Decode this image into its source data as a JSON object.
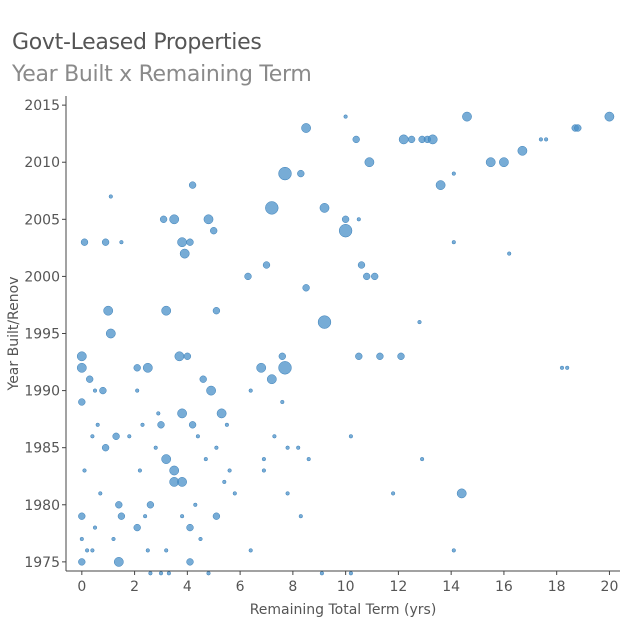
{
  "chart_data": {
    "type": "scatter",
    "title": "Govt-Leased Properties",
    "subtitle": "Year Built x Remaining Term",
    "xlabel": "Remaining Total Term (yrs)",
    "ylabel": "Year Built/Renov",
    "xlim": [
      -0.6,
      20.4
    ],
    "ylim": [
      1974.2,
      2015.8
    ],
    "xticks": [
      0,
      2,
      4,
      6,
      8,
      10,
      12,
      14,
      16,
      18,
      20
    ],
    "yticks": [
      1975,
      1980,
      1985,
      1990,
      1995,
      2000,
      2005,
      2010,
      2015
    ],
    "grid": false,
    "point_color": "#4a90c8",
    "points": [
      [
        20,
        2014,
        3
      ],
      [
        14.6,
        2014,
        3
      ],
      [
        10,
        2014,
        1
      ],
      [
        18.7,
        2013,
        2
      ],
      [
        18.8,
        2013,
        2
      ],
      [
        8.5,
        2013,
        3
      ],
      [
        12.2,
        2012,
        3
      ],
      [
        12.5,
        2012,
        2
      ],
      [
        12.9,
        2012,
        2
      ],
      [
        13.1,
        2012,
        2
      ],
      [
        13.3,
        2012,
        3
      ],
      [
        17.4,
        2012,
        1
      ],
      [
        17.6,
        2012,
        1
      ],
      [
        10.4,
        2012,
        2
      ],
      [
        16.7,
        2011,
        3
      ],
      [
        15.5,
        2010,
        3
      ],
      [
        16.0,
        2010,
        3
      ],
      [
        10.9,
        2010,
        3
      ],
      [
        7.7,
        2009,
        4
      ],
      [
        8.3,
        2009,
        2
      ],
      [
        14.1,
        2009,
        1
      ],
      [
        13.6,
        2008,
        3
      ],
      [
        4.2,
        2008,
        2
      ],
      [
        7.2,
        2006,
        4
      ],
      [
        9.2,
        2006,
        3
      ],
      [
        10.5,
        2005,
        1
      ],
      [
        1.1,
        2007,
        1
      ],
      [
        3.1,
        2005,
        2
      ],
      [
        3.5,
        2005,
        3
      ],
      [
        4.8,
        2005,
        3
      ],
      [
        10.0,
        2005,
        2
      ],
      [
        10.0,
        2004,
        4
      ],
      [
        5.0,
        2004,
        2
      ],
      [
        4.1,
        2003,
        2
      ],
      [
        3.8,
        2003,
        3
      ],
      [
        0.9,
        2003,
        2
      ],
      [
        0.1,
        2003,
        2
      ],
      [
        1.5,
        2003,
        1
      ],
      [
        3.9,
        2002,
        3
      ],
      [
        10.6,
        2001,
        2
      ],
      [
        16.2,
        2002,
        1
      ],
      [
        14.1,
        2003,
        1
      ],
      [
        7.0,
        2001,
        2
      ],
      [
        8.5,
        1999,
        2
      ],
      [
        6.3,
        2000,
        2
      ],
      [
        10.8,
        2000,
        2
      ],
      [
        11.1,
        2000,
        2
      ],
      [
        1.0,
        1997,
        3
      ],
      [
        3.2,
        1997,
        3
      ],
      [
        5.1,
        1997,
        2
      ],
      [
        9.2,
        1996,
        4
      ],
      [
        12.8,
        1996,
        1
      ],
      [
        1.1,
        1995,
        3
      ],
      [
        0.0,
        1993,
        3
      ],
      [
        3.7,
        1993,
        3
      ],
      [
        4.0,
        1993,
        2
      ],
      [
        7.6,
        1993,
        2
      ],
      [
        10.5,
        1993,
        2
      ],
      [
        11.3,
        1993,
        2
      ],
      [
        12.1,
        1993,
        2
      ],
      [
        0.0,
        1992,
        3
      ],
      [
        2.1,
        1992,
        2
      ],
      [
        2.5,
        1992,
        3
      ],
      [
        6.8,
        1992,
        3
      ],
      [
        7.7,
        1992,
        4
      ],
      [
        18.2,
        1992,
        1
      ],
      [
        18.4,
        1992,
        1
      ],
      [
        7.2,
        1991,
        3
      ],
      [
        4.6,
        1991,
        2
      ],
      [
        0.3,
        1991,
        2
      ],
      [
        0.8,
        1990,
        2
      ],
      [
        4.9,
        1990,
        3
      ],
      [
        0.0,
        1989,
        2
      ],
      [
        3.8,
        1988,
        3
      ],
      [
        5.3,
        1988,
        3
      ],
      [
        4.2,
        1987,
        2
      ],
      [
        3.0,
        1987,
        2
      ],
      [
        1.3,
        1986,
        2
      ],
      [
        0.9,
        1985,
        2
      ],
      [
        3.2,
        1984,
        3
      ],
      [
        0.1,
        1983,
        1
      ],
      [
        3.5,
        1983,
        3
      ],
      [
        5.6,
        1983,
        1
      ],
      [
        3.5,
        1982,
        3
      ],
      [
        3.8,
        1982,
        3
      ],
      [
        14.4,
        1981,
        3
      ],
      [
        1.4,
        1980,
        2
      ],
      [
        2.6,
        1980,
        2
      ],
      [
        0.0,
        1979,
        2
      ],
      [
        1.5,
        1979,
        2
      ],
      [
        5.1,
        1979,
        2
      ],
      [
        2.1,
        1978,
        2
      ],
      [
        4.1,
        1978,
        2
      ],
      [
        0.0,
        1977,
        1
      ],
      [
        0.2,
        1976,
        1
      ],
      [
        6.4,
        1976,
        1
      ],
      [
        14.1,
        1976,
        1
      ],
      [
        0.0,
        1975,
        2
      ],
      [
        1.4,
        1975,
        3
      ],
      [
        4.1,
        1975,
        2
      ],
      [
        2.1,
        1990,
        1
      ],
      [
        6.4,
        1990,
        1
      ],
      [
        7.6,
        1989,
        1
      ],
      [
        0.5,
        1990,
        1
      ],
      [
        2.8,
        1985,
        1
      ],
      [
        6.9,
        1984,
        1
      ],
      [
        7.3,
        1986,
        1
      ],
      [
        7.8,
        1985,
        1
      ],
      [
        8.2,
        1985,
        1
      ],
      [
        8.6,
        1984,
        1
      ],
      [
        10.2,
        1986,
        1
      ],
      [
        12.9,
        1984,
        1
      ],
      [
        7.8,
        1981,
        1
      ],
      [
        8.3,
        1979,
        1
      ],
      [
        11.8,
        1981,
        1
      ],
      [
        6.9,
        1983,
        1
      ],
      [
        9.1,
        1974,
        1
      ],
      [
        10.2,
        1974,
        1
      ],
      [
        4.8,
        1974,
        1
      ],
      [
        2.6,
        1974,
        1
      ],
      [
        3.0,
        1974,
        1
      ],
      [
        3.3,
        1974,
        1
      ],
      [
        0.4,
        1986,
        1
      ],
      [
        0.6,
        1987,
        1
      ],
      [
        1.8,
        1986,
        1
      ],
      [
        2.3,
        1987,
        1
      ],
      [
        2.9,
        1988,
        1
      ],
      [
        4.4,
        1986,
        1
      ],
      [
        5.1,
        1985,
        1
      ],
      [
        5.5,
        1987,
        1
      ],
      [
        4.7,
        1984,
        1
      ],
      [
        5.4,
        1982,
        1
      ],
      [
        2.2,
        1983,
        1
      ],
      [
        0.7,
        1981,
        1
      ],
      [
        2.4,
        1979,
        1
      ],
      [
        4.5,
        1977,
        1
      ],
      [
        1.2,
        1977,
        1
      ],
      [
        3.2,
        1976,
        1
      ],
      [
        2.5,
        1976,
        1
      ],
      [
        3.8,
        1979,
        1
      ],
      [
        4.3,
        1980,
        1
      ],
      [
        5.8,
        1981,
        1
      ],
      [
        0.5,
        1978,
        1
      ],
      [
        0.4,
        1976,
        1
      ]
    ]
  }
}
